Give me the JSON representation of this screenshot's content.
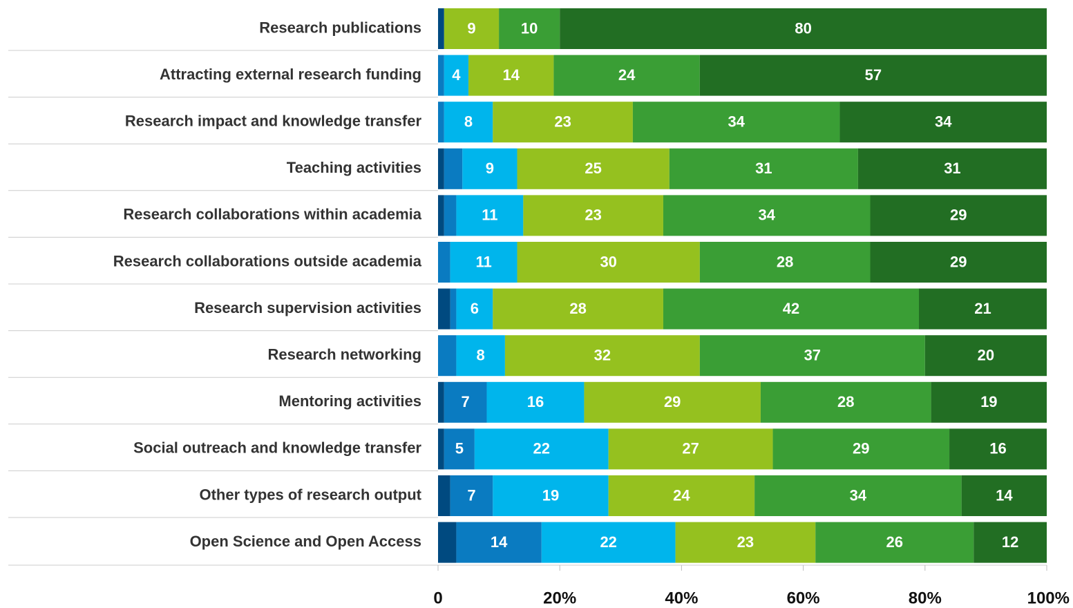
{
  "chart_data": {
    "type": "stacked-barh",
    "categories": [
      "Research publications",
      "Attracting external research funding",
      "Research impact and knowledge transfer",
      "Teaching activities",
      "Research collaborations within academia",
      "Research collaborations outside academia",
      "Research supervision activities",
      "Research networking",
      "Mentoring activities",
      "Social outreach and knowledge transfer",
      "Other types of research output",
      "Open Science and Open Access"
    ],
    "series": [
      {
        "color": "#004a80",
        "values": [
          1,
          0,
          0,
          1,
          1,
          0,
          2,
          0,
          1,
          1,
          2,
          3
        ]
      },
      {
        "color": "#0a7bc1",
        "values": [
          0,
          1,
          1,
          3,
          2,
          2,
          1,
          3,
          7,
          5,
          7,
          14
        ]
      },
      {
        "color": "#00b5ec",
        "values": [
          0,
          4,
          8,
          9,
          11,
          11,
          6,
          8,
          16,
          22,
          19,
          22
        ]
      },
      {
        "color": "#95c11f",
        "values": [
          9,
          14,
          23,
          25,
          23,
          30,
          28,
          32,
          29,
          27,
          24,
          23
        ]
      },
      {
        "color": "#3a9e35",
        "values": [
          10,
          24,
          34,
          31,
          34,
          28,
          42,
          37,
          28,
          29,
          34,
          26
        ]
      },
      {
        "color": "#226e23",
        "values": [
          80,
          57,
          34,
          31,
          29,
          29,
          21,
          20,
          19,
          16,
          14,
          12
        ]
      }
    ],
    "xlim": [
      0,
      100
    ],
    "xticks": [
      0,
      {
        "value": 20,
        "label": "20%"
      },
      {
        "value": 40,
        "label": "40%"
      },
      {
        "value": 60,
        "label": "60%"
      },
      {
        "value": 80,
        "label": "80%"
      },
      {
        "value": 100,
        "label": "100%"
      }
    ]
  }
}
